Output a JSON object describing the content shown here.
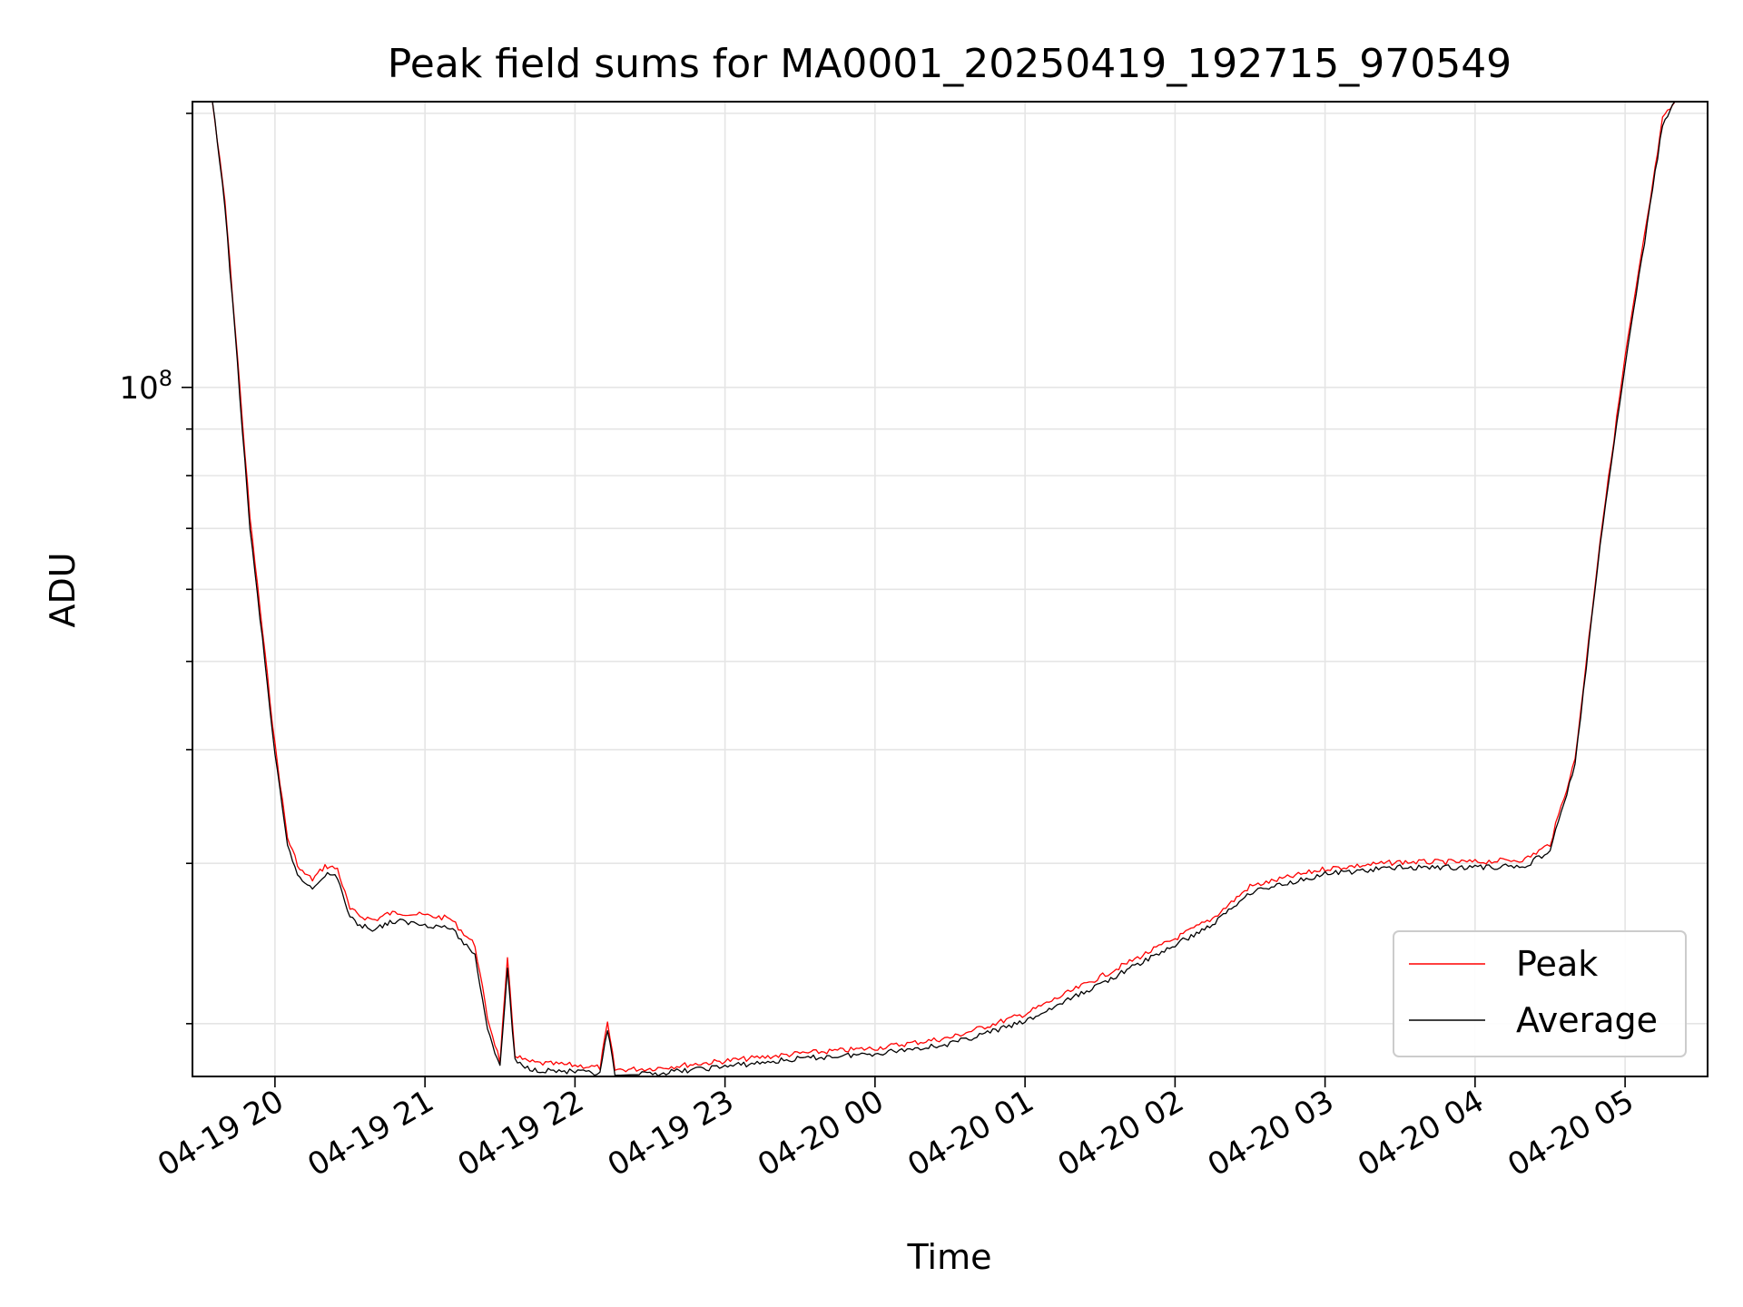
{
  "chart_data": {
    "type": "line",
    "title": "Peak field sums for MA0001_20250419_192715_970549",
    "xlabel": "Time",
    "ylabel": "ADU",
    "x_scale": "time",
    "y_scale": "log",
    "grid": true,
    "legend_position": "lower right",
    "xlim": [
      "2025-04-19 19:27",
      "2025-04-20 05:33"
    ],
    "ylim": [
      17500000,
      206000000
    ],
    "x_ticks": [
      "2025-04-19 20:00",
      "2025-04-19 21:00",
      "2025-04-19 22:00",
      "2025-04-19 23:00",
      "2025-04-20 00:00",
      "2025-04-20 01:00",
      "2025-04-20 02:00",
      "2025-04-20 03:00",
      "2025-04-20 04:00",
      "2025-04-20 05:00"
    ],
    "x_tick_labels": [
      "04-19 20",
      "04-19 21",
      "04-19 22",
      "04-19 23",
      "04-20 00",
      "04-20 01",
      "04-20 02",
      "04-20 03",
      "04-20 04",
      "04-20 05"
    ],
    "y_ticks_major": [
      100000000
    ],
    "y_tick_labels": [
      {
        "base": "10",
        "exp": "8"
      }
    ],
    "y_ticks_minor": [
      20000000,
      30000000,
      40000000,
      50000000,
      60000000,
      70000000,
      80000000,
      90000000,
      200000000
    ],
    "series": [
      {
        "name": "Peak",
        "color": "#ff0000",
        "x": [
          "2025-04-19 19:27",
          "2025-04-19 19:35",
          "2025-04-19 19:40",
          "2025-04-19 19:45",
          "2025-04-19 19:50",
          "2025-04-19 19:55",
          "2025-04-19 20:00",
          "2025-04-19 20:05",
          "2025-04-19 20:10",
          "2025-04-19 20:15",
          "2025-04-19 20:20",
          "2025-04-19 20:25",
          "2025-04-19 20:30",
          "2025-04-19 20:35",
          "2025-04-19 20:40",
          "2025-04-19 20:45",
          "2025-04-19 20:50",
          "2025-04-19 21:00",
          "2025-04-19 21:10",
          "2025-04-19 21:20",
          "2025-04-19 21:25",
          "2025-04-19 21:30",
          "2025-04-19 21:33",
          "2025-04-19 21:36",
          "2025-04-19 21:40",
          "2025-04-19 21:45",
          "2025-04-19 22:00",
          "2025-04-19 22:10",
          "2025-04-19 22:13",
          "2025-04-19 22:16",
          "2025-04-19 22:30",
          "2025-04-19 23:00",
          "2025-04-19 23:30",
          "2025-04-20 00:00",
          "2025-04-20 00:30",
          "2025-04-20 01:00",
          "2025-04-20 01:30",
          "2025-04-20 02:00",
          "2025-04-20 02:15",
          "2025-04-20 02:30",
          "2025-04-20 03:00",
          "2025-04-20 03:30",
          "2025-04-20 04:00",
          "2025-04-20 04:20",
          "2025-04-20 04:30",
          "2025-04-20 04:40",
          "2025-04-20 04:50",
          "2025-04-20 05:00",
          "2025-04-20 05:10",
          "2025-04-20 05:15",
          "2025-04-20 05:20"
        ],
        "y": [
          206000000,
          206000000,
          160000000,
          108000000,
          72000000,
          54000000,
          40500000,
          32000000,
          29500000,
          28800000,
          29800000,
          29600000,
          26700000,
          26200000,
          26000000,
          26400000,
          26500000,
          26300000,
          26100000,
          24400000,
          20300000,
          18200000,
          23500000,
          18500000,
          18200000,
          18100000,
          18000000,
          17900000,
          20000000,
          17800000,
          17850000,
          18200000,
          18550000,
          18800000,
          19300000,
          20500000,
          22500000,
          24800000,
          26100000,
          28300000,
          29600000,
          30100000,
          30100000,
          30300000,
          31500000,
          39000000,
          68000000,
          108000000,
          160000000,
          197000000,
          206000000
        ]
      },
      {
        "name": "Average",
        "color": "#000000",
        "x": [
          "2025-04-19 19:27",
          "2025-04-19 19:35",
          "2025-04-19 19:40",
          "2025-04-19 19:45",
          "2025-04-19 19:50",
          "2025-04-19 19:55",
          "2025-04-19 20:00",
          "2025-04-19 20:05",
          "2025-04-19 20:10",
          "2025-04-19 20:15",
          "2025-04-19 20:20",
          "2025-04-19 20:25",
          "2025-04-19 20:30",
          "2025-04-19 20:35",
          "2025-04-19 20:40",
          "2025-04-19 20:45",
          "2025-04-19 20:50",
          "2025-04-19 21:00",
          "2025-04-19 21:10",
          "2025-04-19 21:20",
          "2025-04-19 21:25",
          "2025-04-19 21:30",
          "2025-04-19 21:33",
          "2025-04-19 21:36",
          "2025-04-19 21:40",
          "2025-04-19 21:45",
          "2025-04-19 22:00",
          "2025-04-19 22:10",
          "2025-04-19 22:13",
          "2025-04-19 22:16",
          "2025-04-19 22:30",
          "2025-04-19 23:00",
          "2025-04-19 23:30",
          "2025-04-20 00:00",
          "2025-04-20 00:30",
          "2025-04-20 01:00",
          "2025-04-20 01:30",
          "2025-04-20 02:00",
          "2025-04-20 02:15",
          "2025-04-20 02:30",
          "2025-04-20 03:00",
          "2025-04-20 03:30",
          "2025-04-20 04:00",
          "2025-04-20 04:20",
          "2025-04-20 04:30",
          "2025-04-20 04:40",
          "2025-04-20 04:50",
          "2025-04-20 05:00",
          "2025-04-20 05:10",
          "2025-04-20 05:15",
          "2025-04-20 05:20"
        ],
        "y": [
          206000000,
          206000000,
          158000000,
          106000000,
          70000000,
          52800000,
          39500000,
          31300000,
          28800000,
          28200000,
          29200000,
          29000000,
          26100000,
          25600000,
          25400000,
          25800000,
          25900000,
          25700000,
          25500000,
          23800000,
          19800000,
          17900000,
          23000000,
          18200000,
          17900000,
          17800000,
          17700000,
          17600000,
          19700000,
          17550000,
          17600000,
          17950000,
          18300000,
          18550000,
          19000000,
          20100000,
          22100000,
          24400000,
          25700000,
          27900000,
          29200000,
          29700000,
          29700000,
          29800000,
          31000000,
          38500000,
          67000000,
          106000000,
          158000000,
          195000000,
          206000000
        ]
      }
    ]
  }
}
